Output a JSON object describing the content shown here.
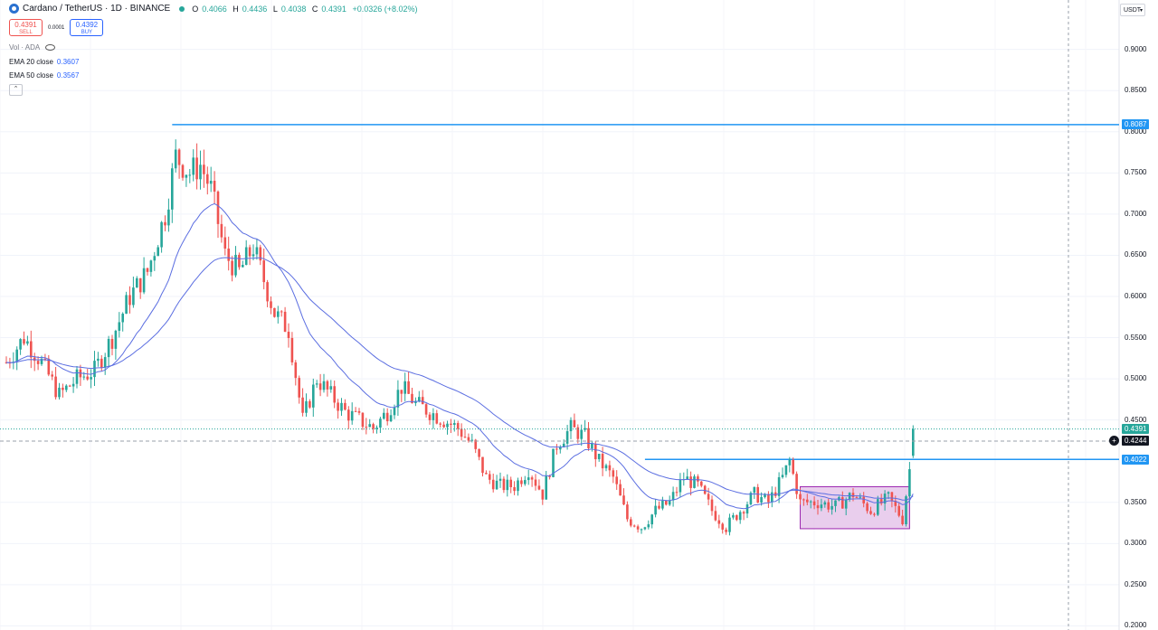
{
  "header": {
    "title": "Cardano / TetherUS · 1D · BINANCE",
    "ohlc": {
      "o_label": "O",
      "o": "0.4066",
      "h_label": "H",
      "h": "0.4436",
      "l_label": "L",
      "l": "0.4038",
      "c_label": "C",
      "c": "0.4391",
      "change": "+0.0326 (+8.02%)"
    }
  },
  "trade": {
    "sell_price": "0.4391",
    "sell_label": "SELL",
    "spread": "0.0001",
    "buy_price": "0.4392",
    "buy_label": "BUY"
  },
  "indicators": {
    "vol": "Vol · ADA",
    "ema20": {
      "label": "EMA 20 close",
      "value": "0.3607",
      "color": "#2962ff"
    },
    "ema50": {
      "label": "EMA 50 close",
      "value": "0.3567",
      "color": "#2962ff"
    }
  },
  "collapse_icon": "chevron-up-icon",
  "currency": "USDT",
  "colors": {
    "up": "#26a69a",
    "down": "#ef5350",
    "hline": "#2196f3",
    "rect_fill": "#e1bee7",
    "rect_stroke": "#9c27b0",
    "ema": "#5b6ee1"
  },
  "chart_data": {
    "type": "candlestick",
    "symbol": "Cardano / TetherUS",
    "timeframe": "1D",
    "exchange": "BINANCE",
    "ylim": [
      0.195,
      0.96
    ],
    "y_ticks": [
      "0.9000",
      "0.8500",
      "0.8000",
      "0.7500",
      "0.7000",
      "0.6500",
      "0.6000",
      "0.5500",
      "0.5000",
      "0.4500",
      "0.3500",
      "0.3000",
      "0.2500",
      "0.2000"
    ],
    "price_labels": [
      {
        "value": "0.8087",
        "kind": "hline"
      },
      {
        "value": "0.4391",
        "kind": "last"
      },
      {
        "value": "0.4244",
        "kind": "crosshair"
      },
      {
        "value": "0.4022",
        "kind": "hline"
      }
    ],
    "horizontal_lines": [
      0.8087,
      0.4022
    ],
    "box": {
      "start_index": 225,
      "end_index": 256,
      "y_low": 0.318,
      "y_high": 0.369
    },
    "anchors": [
      [
        0,
        0.52
      ],
      [
        5,
        0.55
      ],
      [
        10,
        0.52
      ],
      [
        15,
        0.48
      ],
      [
        20,
        0.5
      ],
      [
        25,
        0.51
      ],
      [
        30,
        0.55
      ],
      [
        35,
        0.6
      ],
      [
        40,
        0.63
      ],
      [
        45,
        0.7
      ],
      [
        48,
        0.77
      ],
      [
        52,
        0.75
      ],
      [
        55,
        0.76
      ],
      [
        58,
        0.73
      ],
      [
        62,
        0.65
      ],
      [
        66,
        0.63
      ],
      [
        70,
        0.66
      ],
      [
        73,
        0.62
      ],
      [
        76,
        0.58
      ],
      [
        80,
        0.56
      ],
      [
        84,
        0.45
      ],
      [
        88,
        0.5
      ],
      [
        92,
        0.48
      ],
      [
        96,
        0.46
      ],
      [
        100,
        0.45
      ],
      [
        104,
        0.44
      ],
      [
        108,
        0.46
      ],
      [
        112,
        0.49
      ],
      [
        116,
        0.47
      ],
      [
        120,
        0.46
      ],
      [
        124,
        0.45
      ],
      [
        128,
        0.44
      ],
      [
        132,
        0.42
      ],
      [
        136,
        0.38
      ],
      [
        140,
        0.37
      ],
      [
        144,
        0.37
      ],
      [
        148,
        0.39
      ],
      [
        152,
        0.36
      ],
      [
        156,
        0.42
      ],
      [
        160,
        0.44
      ],
      [
        164,
        0.43
      ],
      [
        168,
        0.4
      ],
      [
        172,
        0.38
      ],
      [
        176,
        0.33
      ],
      [
        180,
        0.32
      ],
      [
        184,
        0.34
      ],
      [
        188,
        0.35
      ],
      [
        192,
        0.38
      ],
      [
        196,
        0.37
      ],
      [
        200,
        0.34
      ],
      [
        204,
        0.32
      ],
      [
        208,
        0.34
      ],
      [
        212,
        0.36
      ],
      [
        216,
        0.35
      ],
      [
        220,
        0.38
      ],
      [
        222,
        0.4
      ],
      [
        225,
        0.35
      ],
      [
        230,
        0.35
      ],
      [
        235,
        0.345
      ],
      [
        240,
        0.36
      ],
      [
        245,
        0.34
      ],
      [
        250,
        0.355
      ],
      [
        254,
        0.33
      ],
      [
        256,
        0.39
      ],
      [
        257,
        0.4066
      ]
    ],
    "last_candle": {
      "open": 0.4066,
      "high": 0.4436,
      "low": 0.4038,
      "close": 0.4391
    },
    "ema_periods": [
      20,
      50
    ]
  }
}
